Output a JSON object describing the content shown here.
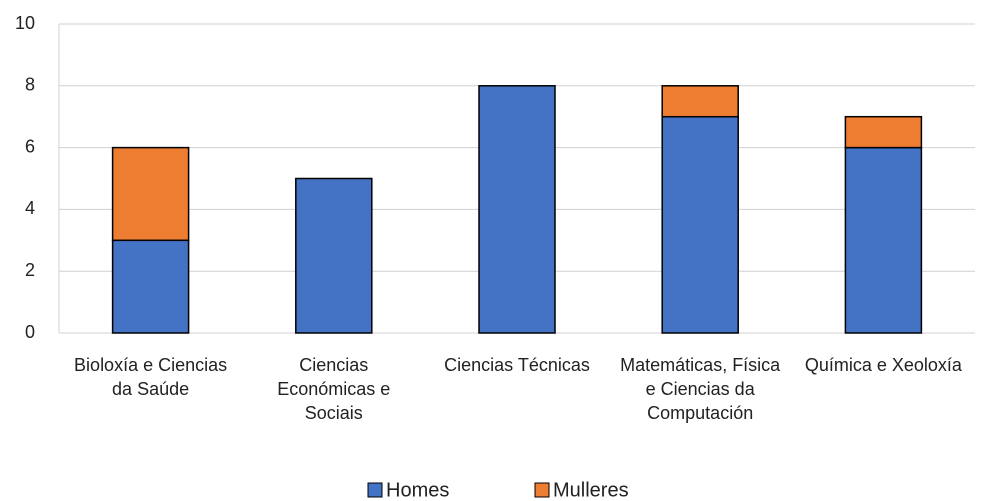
{
  "chart_data": {
    "type": "stacked_bar",
    "categories": [
      "Bioloxía e Ciencias da Saúde",
      "Ciencias Económicas e Sociais",
      "Ciencias Técnicas",
      "Matemáticas, Física e Ciencias da Computación",
      "Química e Xeoloxía"
    ],
    "series": [
      {
        "name": "Homes",
        "color": "#4472c4",
        "values": [
          3,
          5,
          8,
          7,
          6
        ]
      },
      {
        "name": "Mulleres",
        "color": "#ed7d31",
        "values": [
          3,
          0,
          0,
          1,
          1
        ]
      }
    ],
    "ylim": [
      0,
      10
    ],
    "yticks": [
      0,
      2,
      4,
      6,
      8,
      10
    ],
    "grid": true,
    "legend": "bottom"
  }
}
